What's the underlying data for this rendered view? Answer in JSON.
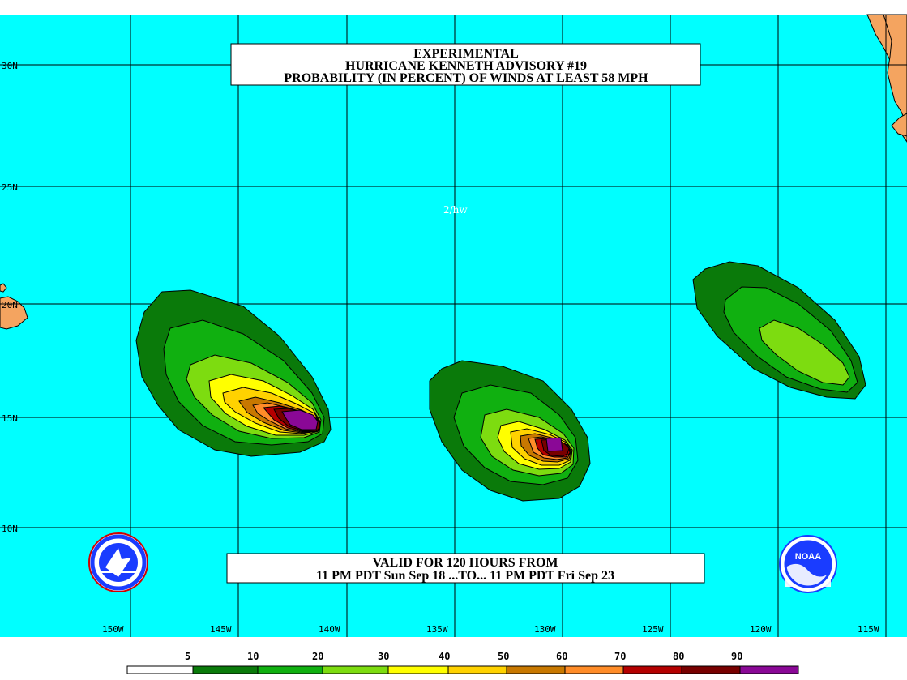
{
  "title": {
    "line1": "EXPERIMENTAL",
    "line2": "HURRICANE KENNETH ADVISORY #19",
    "line3": "PROBABILITY (IN PERCENT) OF WINDS AT LEAST 58 MPH"
  },
  "stamp": "2/hw",
  "validity": {
    "line1": "VALID FOR 120 HOURS FROM",
    "line2": "11 PM PDT Sun Sep 18 ...TO... 11 PM PDT Fri Sep 23"
  },
  "axes": {
    "lat_labels": [
      "30N",
      "25N",
      "20N",
      "15N",
      "10N"
    ],
    "lon_labels": [
      "150W",
      "145W",
      "140W",
      "135W",
      "130W",
      "125W",
      "120W",
      "115W"
    ]
  },
  "legend": {
    "labels": [
      "5",
      "10",
      "20",
      "30",
      "40",
      "50",
      "60",
      "70",
      "80",
      "90"
    ],
    "colors": [
      "#ffffff",
      "#0a7a0a",
      "#10b010",
      "#7ddc10",
      "#ffff00",
      "#ffd200",
      "#c87800",
      "#ff8c28",
      "#b40000",
      "#780000",
      "#8a0896"
    ]
  },
  "colors": {
    "ocean": "#00ffff",
    "land": "#f4a460",
    "grid": "#000000"
  },
  "logos": {
    "left": "nws-logo",
    "right": "noaa-logo",
    "right_text": "NOAA"
  }
}
